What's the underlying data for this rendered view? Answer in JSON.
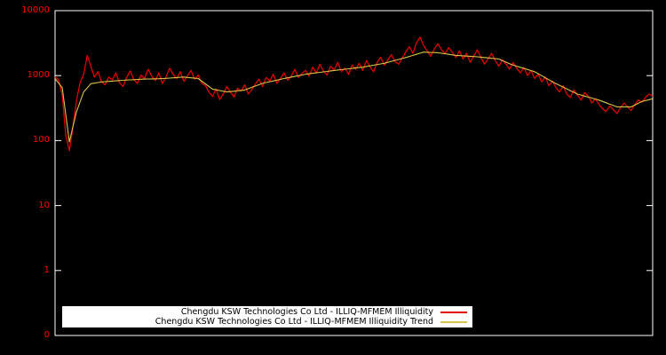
{
  "chart_data": {
    "type": "line",
    "title": "",
    "xlabel": "",
    "ylabel": "",
    "x_axis": {
      "tick_labels_visible": false
    },
    "y_axis": {
      "scale": "log",
      "range": [
        0.1,
        10000
      ],
      "ticks": [
        {
          "label": "10000",
          "value": 10000
        },
        {
          "label": "1000",
          "value": 1000
        },
        {
          "label": "100",
          "value": 100
        },
        {
          "label": "10",
          "value": 10
        },
        {
          "label": "1",
          "value": 1
        },
        {
          "label": "0",
          "value": 0.1
        }
      ]
    },
    "colors": {
      "background": "#000000",
      "plot_border": "#ffffff",
      "tick_label": "#ff0000",
      "legend_background": "#ffffff",
      "legend_text": "#000000"
    },
    "legend": {
      "position": "bottom-center"
    },
    "series": [
      {
        "name": "Chengdu KSW Technologies Co Ltd - ILLIQ-MFMEM Illiquidity",
        "color": "#e00000",
        "values": [
          950,
          870,
          500,
          120,
          70,
          160,
          420,
          780,
          1050,
          2050,
          1400,
          950,
          1150,
          800,
          720,
          950,
          860,
          1100,
          780,
          680,
          940,
          1180,
          870,
          760,
          1020,
          900,
          1250,
          980,
          840,
          1100,
          760,
          950,
          1300,
          1050,
          900,
          1150,
          820,
          980,
          1200,
          880,
          1020,
          760,
          700,
          560,
          480,
          620,
          430,
          520,
          680,
          560,
          470,
          640,
          580,
          720,
          520,
          610,
          750,
          880,
          680,
          940,
          820,
          1050,
          760,
          900,
          1100,
          850,
          980,
          1250,
          940,
          1080,
          1200,
          980,
          1350,
          1100,
          1500,
          1180,
          1020,
          1400,
          1220,
          1600,
          1150,
          1300,
          1050,
          1450,
          1250,
          1550,
          1200,
          1700,
          1380,
          1150,
          1600,
          1900,
          1450,
          1750,
          2100,
          1650,
          1500,
          1850,
          2300,
          2800,
          2200,
          3200,
          3900,
          2900,
          2400,
          2000,
          2600,
          3100,
          2500,
          2200,
          2700,
          2300,
          1900,
          2400,
          1800,
          2200,
          1600,
          2000,
          2500,
          1900,
          1500,
          1800,
          2200,
          1700,
          1400,
          1750,
          1500,
          1250,
          1600,
          1300,
          1100,
          1350,
          1000,
          1200,
          900,
          1050,
          800,
          950,
          700,
          820,
          650,
          560,
          700,
          520,
          460,
          600,
          500,
          420,
          550,
          480,
          380,
          440,
          360,
          310,
          280,
          340,
          300,
          260,
          320,
          380,
          330,
          290,
          360,
          420,
          390,
          460,
          520,
          480
        ]
      },
      {
        "name": "Chengdu KSW Technologies Co Ltd - ILLIQ-MFMEM Illiquidity Trend",
        "color": "#d8c44a",
        "anchors": [
          [
            0,
            900
          ],
          [
            2,
            650
          ],
          [
            4,
            95
          ],
          [
            6,
            280
          ],
          [
            8,
            560
          ],
          [
            10,
            750
          ],
          [
            13,
            800
          ],
          [
            18,
            840
          ],
          [
            24,
            880
          ],
          [
            30,
            900
          ],
          [
            36,
            950
          ],
          [
            40,
            900
          ],
          [
            44,
            620
          ],
          [
            48,
            560
          ],
          [
            53,
            600
          ],
          [
            58,
            760
          ],
          [
            64,
            900
          ],
          [
            70,
            1050
          ],
          [
            78,
            1200
          ],
          [
            86,
            1350
          ],
          [
            92,
            1550
          ],
          [
            98,
            1900
          ],
          [
            103,
            2300
          ],
          [
            107,
            2250
          ],
          [
            112,
            2050
          ],
          [
            118,
            1950
          ],
          [
            124,
            1800
          ],
          [
            128,
            1450
          ],
          [
            134,
            1150
          ],
          [
            140,
            750
          ],
          [
            146,
            520
          ],
          [
            152,
            420
          ],
          [
            157,
            330
          ],
          [
            161,
            330
          ],
          [
            164,
            400
          ],
          [
            167,
            440
          ]
        ]
      }
    ]
  }
}
